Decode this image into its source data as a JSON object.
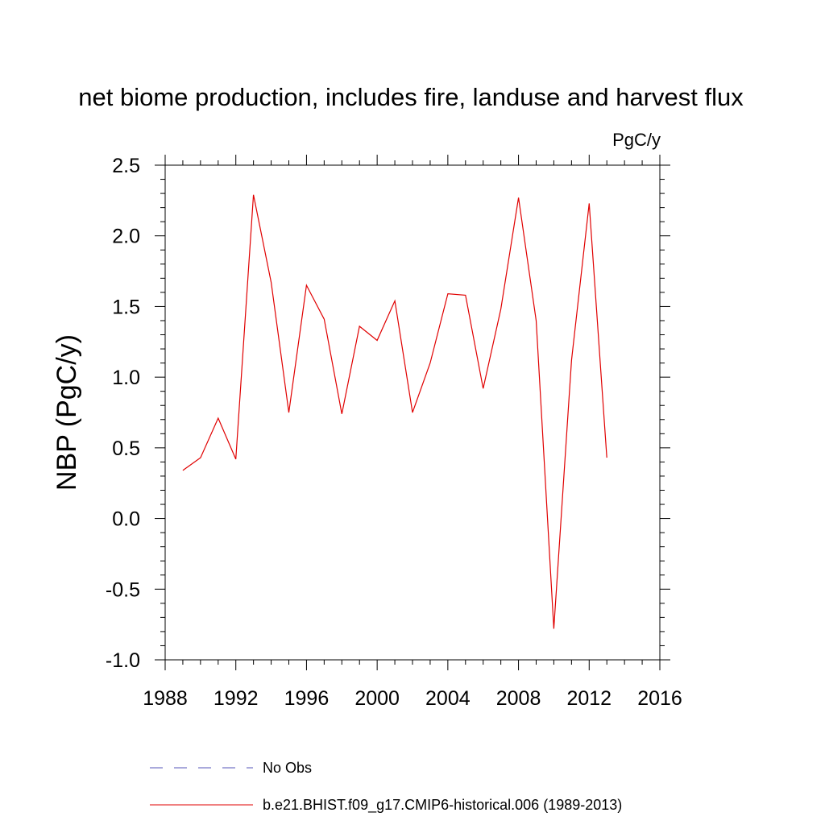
{
  "chart_data": {
    "type": "line",
    "title": "net biome production, includes fire, landuse and harvest flux",
    "units": "PgC/y",
    "xlabel": "",
    "ylabel": "NBP  (PgC/y)",
    "xlim": [
      1988,
      2016
    ],
    "ylim": [
      -1.0,
      2.5
    ],
    "x_ticks": [
      1988,
      1992,
      1996,
      2000,
      2004,
      2008,
      2012,
      2016
    ],
    "x_tick_labels": [
      "1988",
      "1992",
      "1996",
      "2000",
      "2004",
      "2008",
      "2012",
      "2016"
    ],
    "y_ticks": [
      -1.0,
      -0.5,
      0.0,
      0.5,
      1.0,
      1.5,
      2.0,
      2.5
    ],
    "y_tick_labels": [
      "-1.0",
      "-0.5",
      "0.0",
      "0.5",
      "1.0",
      "1.5",
      "2.0",
      "2.5"
    ],
    "grid": false,
    "legend_position": "bottom",
    "series": [
      {
        "name": "b.e21.BHIST.f09_g17.CMIP6-historical.006 (1989-2013)",
        "color": "#e00000",
        "style": "solid",
        "x": [
          1989,
          1990,
          1991,
          1992,
          1993,
          1994,
          1995,
          1996,
          1997,
          1998,
          1999,
          2000,
          2001,
          2002,
          2003,
          2004,
          2005,
          2006,
          2007,
          2008,
          2009,
          2010,
          2011,
          2012,
          2013
        ],
        "values": [
          0.34,
          0.43,
          0.71,
          0.42,
          2.29,
          1.67,
          0.75,
          1.65,
          1.41,
          0.74,
          1.36,
          1.26,
          1.54,
          0.75,
          1.1,
          1.59,
          1.58,
          0.92,
          1.48,
          2.27,
          1.4,
          -0.78,
          1.12,
          2.23,
          0.43
        ]
      }
    ],
    "legend": [
      {
        "label": "No Obs",
        "color": "#7878c8",
        "style": "dashed"
      },
      {
        "label": "b.e21.BHIST.f09_g17.CMIP6-historical.006 (1989-2013)",
        "color": "#e00000",
        "style": "solid"
      }
    ]
  }
}
